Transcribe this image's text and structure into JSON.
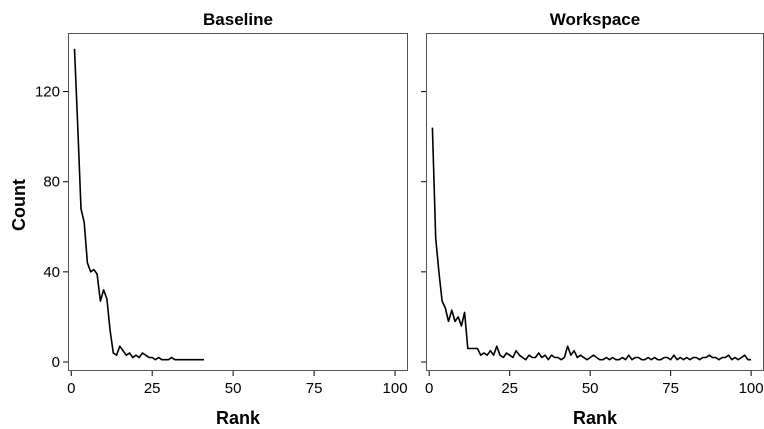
{
  "chart_data": [
    {
      "type": "line",
      "title": "Baseline",
      "xlabel": "Rank",
      "ylabel": "Count",
      "xlim": [
        -1,
        104
      ],
      "ylim": [
        -4,
        146
      ],
      "xticks": [
        0,
        25,
        50,
        75,
        100
      ],
      "yticks": [
        0,
        40,
        80,
        120
      ],
      "grid": false,
      "x": [
        1,
        2,
        3,
        4,
        5,
        6,
        7,
        8,
        9,
        10,
        11,
        12,
        13,
        14,
        15,
        16,
        17,
        18,
        19,
        20,
        21,
        22,
        23,
        24,
        25,
        26,
        27,
        28,
        29,
        30,
        31,
        32,
        33,
        34,
        35,
        36,
        37,
        38,
        39,
        40,
        41
      ],
      "y": [
        139,
        105,
        68,
        62,
        44,
        40,
        41,
        39,
        27,
        32,
        28,
        14,
        4,
        3,
        7,
        5,
        3,
        4,
        2,
        3,
        2,
        4,
        3,
        2,
        2,
        1,
        2,
        1,
        1,
        1,
        2,
        1,
        1,
        1,
        1,
        1,
        1,
        1,
        1,
        1,
        1
      ]
    },
    {
      "type": "line",
      "title": "Workspace",
      "xlabel": "Rank",
      "ylabel": "",
      "xlim": [
        -1,
        104
      ],
      "ylim": [
        -4,
        146
      ],
      "xticks": [
        0,
        25,
        50,
        75,
        100
      ],
      "yticks": [
        0,
        40,
        80,
        120
      ],
      "grid": false,
      "x": [
        1,
        2,
        3,
        4,
        5,
        6,
        7,
        8,
        9,
        10,
        11,
        12,
        13,
        14,
        15,
        16,
        17,
        18,
        19,
        20,
        21,
        22,
        23,
        24,
        25,
        26,
        27,
        28,
        29,
        30,
        31,
        32,
        33,
        34,
        35,
        36,
        37,
        38,
        39,
        40,
        41,
        42,
        43,
        44,
        45,
        46,
        47,
        48,
        49,
        50,
        51,
        52,
        53,
        54,
        55,
        56,
        57,
        58,
        59,
        60,
        61,
        62,
        63,
        64,
        65,
        66,
        67,
        68,
        69,
        70,
        71,
        72,
        73,
        74,
        75,
        76,
        77,
        78,
        79,
        80,
        81,
        82,
        83,
        84,
        85,
        86,
        87,
        88,
        89,
        90,
        91,
        92,
        93,
        94,
        95,
        96,
        97,
        98,
        99,
        100
      ],
      "y": [
        104,
        55,
        40,
        27,
        24,
        18,
        23,
        18,
        20,
        16,
        22,
        6,
        6,
        6,
        6,
        3,
        4,
        3,
        5,
        3,
        7,
        3,
        2,
        4,
        3,
        2,
        5,
        3,
        2,
        1,
        3,
        2,
        2,
        4,
        2,
        3,
        1,
        3,
        2,
        2,
        1,
        2,
        7,
        3,
        5,
        2,
        3,
        2,
        1,
        2,
        3,
        2,
        1,
        1,
        2,
        1,
        2,
        1,
        1,
        2,
        1,
        3,
        1,
        2,
        2,
        1,
        1,
        2,
        1,
        2,
        1,
        1,
        2,
        2,
        1,
        3,
        1,
        2,
        1,
        2,
        1,
        2,
        2,
        1,
        2,
        2,
        3,
        2,
        2,
        1,
        2,
        2,
        3,
        1,
        2,
        1,
        2,
        3,
        1,
        1
      ]
    }
  ]
}
